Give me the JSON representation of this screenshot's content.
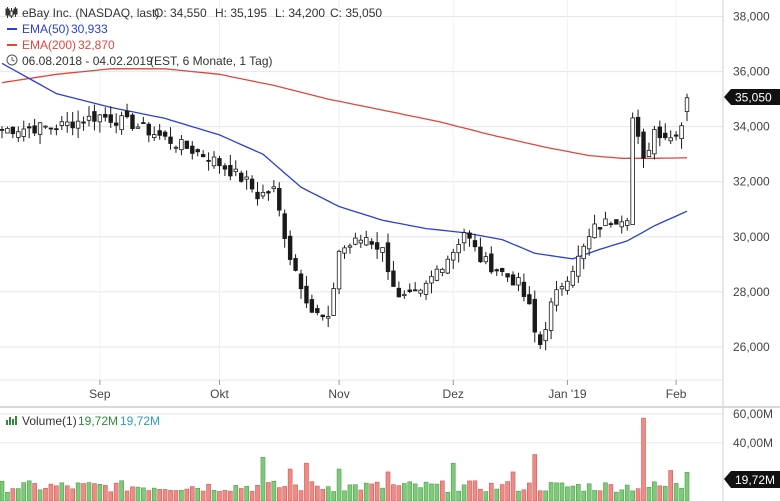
{
  "header": {
    "symbol_line": "eBay Inc. (NASDAQ, last)",
    "open": "O: 34,550",
    "high": "H: 35,195",
    "low": "L: 34,200",
    "close": "C: 35,050",
    "ema50_label": "EMA(50)",
    "ema50_value": "30,933",
    "ema200_label": "EMA(200)",
    "ema200_value": "32,870",
    "period_text": "06.08.2018 - 04.02.2019",
    "period_suffix": "(EST, 6 Monate, 1 Tag)"
  },
  "volume_header": {
    "label": "Volume(1)",
    "value1": "19,72M",
    "value2": "19,72M"
  },
  "last_price_tag": "35,050",
  "last_volume_tag": "19,72M",
  "colors": {
    "ema50": "#2a3fd4",
    "ema200": "#e0463c",
    "up_volume": "#7fc97a",
    "down_volume": "#ef8a86",
    "candle": "#1a1a1a",
    "grid": "#e6e6e6"
  },
  "chart_data": [
    {
      "type": "candlestick",
      "title": "eBay Inc. (NASDAQ, last)",
      "ylim": [
        24.8,
        38.6
      ],
      "y_ticks": [
        "38,000",
        "36,000",
        "34,000",
        "32,000",
        "30,000",
        "28,000",
        "26,000"
      ],
      "x_ticks": [
        "Sep",
        "Okt",
        "Nov",
        "Dez",
        "Jan '19",
        "Feb"
      ],
      "x_tick_index": [
        18,
        40,
        62,
        83,
        104,
        124
      ],
      "n_days": 127,
      "anchors_close": [
        [
          0,
          33.9
        ],
        [
          10,
          34.0
        ],
        [
          18,
          34.4
        ],
        [
          24,
          34.1
        ],
        [
          32,
          33.4
        ],
        [
          38,
          32.9
        ],
        [
          42,
          32.4
        ],
        [
          45,
          32.0
        ],
        [
          47,
          31.5
        ],
        [
          50,
          31.7
        ],
        [
          53,
          29.3
        ],
        [
          57,
          27.3
        ],
        [
          60,
          26.9
        ],
        [
          62,
          29.5
        ],
        [
          67,
          30.0
        ],
        [
          70,
          29.5
        ],
        [
          73,
          27.7
        ],
        [
          77,
          27.9
        ],
        [
          80,
          28.8
        ],
        [
          83,
          29.5
        ],
        [
          85,
          30.2
        ],
        [
          88,
          29.2
        ],
        [
          92,
          28.7
        ],
        [
          95,
          28.3
        ],
        [
          97,
          27.4
        ],
        [
          98,
          26.5
        ],
        [
          99,
          26.1
        ],
        [
          101,
          27.5
        ],
        [
          103,
          28.3
        ],
        [
          106,
          29.2
        ],
        [
          109,
          30.3
        ],
        [
          112,
          30.6
        ],
        [
          115,
          30.8
        ],
        [
          116,
          34.3
        ],
        [
          118,
          32.7
        ],
        [
          120,
          33.9
        ],
        [
          123,
          33.6
        ],
        [
          125,
          34.1
        ],
        [
          126,
          35.05
        ]
      ],
      "last_candle": {
        "open": 34.55,
        "high": 35.195,
        "low": 34.2,
        "close": 35.05
      },
      "ema50": [
        [
          0,
          36.3
        ],
        [
          10,
          35.2
        ],
        [
          20,
          34.7
        ],
        [
          30,
          34.3
        ],
        [
          40,
          33.7
        ],
        [
          48,
          33.0
        ],
        [
          55,
          31.8
        ],
        [
          62,
          31.1
        ],
        [
          70,
          30.6
        ],
        [
          78,
          30.3
        ],
        [
          85,
          30.15
        ],
        [
          92,
          29.9
        ],
        [
          98,
          29.4
        ],
        [
          105,
          29.2
        ],
        [
          110,
          29.55
        ],
        [
          115,
          29.85
        ],
        [
          120,
          30.4
        ],
        [
          126,
          30.93
        ]
      ],
      "ema200": [
        [
          0,
          35.6
        ],
        [
          10,
          35.9
        ],
        [
          20,
          36.1
        ],
        [
          30,
          36.1
        ],
        [
          40,
          35.9
        ],
        [
          50,
          35.5
        ],
        [
          60,
          35.0
        ],
        [
          70,
          34.6
        ],
        [
          80,
          34.2
        ],
        [
          90,
          33.7
        ],
        [
          100,
          33.25
        ],
        [
          108,
          32.95
        ],
        [
          114,
          32.85
        ],
        [
          120,
          32.85
        ],
        [
          126,
          32.87
        ]
      ],
      "ema_visible_until": 126
    },
    {
      "type": "bar",
      "title": "Volume(1)",
      "ylim": [
        0,
        64
      ],
      "y_ticks": [
        "60,00M",
        "40,00M"
      ],
      "unit": "M",
      "last_value": 19.72,
      "highlight_bars": [
        [
          48,
          30
        ],
        [
          53,
          22
        ],
        [
          56,
          26
        ],
        [
          62,
          22
        ],
        [
          71,
          20
        ],
        [
          83,
          26
        ],
        [
          94,
          20
        ],
        [
          98,
          32
        ],
        [
          118,
          57
        ],
        [
          123,
          21
        ]
      ],
      "base_range": [
        6,
        14
      ]
    }
  ]
}
